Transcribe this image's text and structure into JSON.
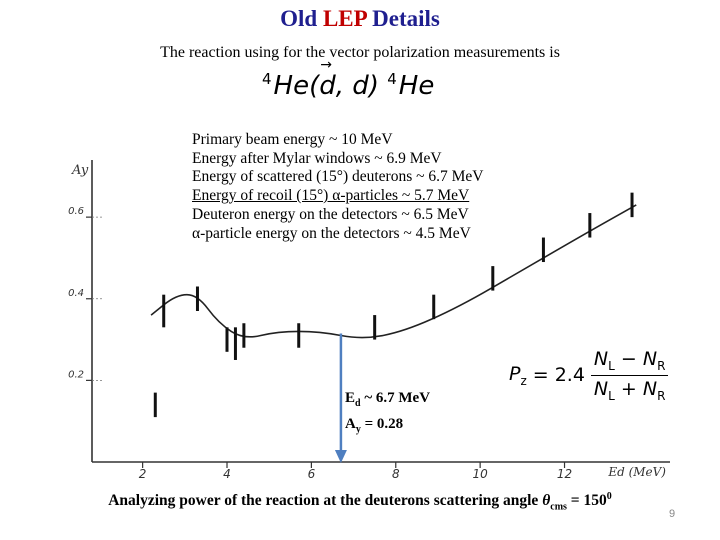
{
  "slide": {
    "title_pre": "Old ",
    "title_highlight": "LEP",
    "title_post": " Details",
    "subtitle": "The reaction using for the vector polarization measurements is",
    "page_number": "9"
  },
  "reaction": {
    "mass_number": "4",
    "nucleus": "He",
    "projectile": "d",
    "ejectile": "d"
  },
  "energies": [
    "Primary beam energy ~ 10 MeV",
    "Energy after Mylar windows ~ 6.9 MeV",
    "Energy of scattered (15°) deuterons ~ 6.7 MeV",
    "Energy of recoil (15°) α-particles ~ 5.7 MeV",
    "Deuteron energy on the detectors ~ 6.5 MeV",
    "α-particle energy on the detectors ~ 4.5 MeV"
  ],
  "formula": {
    "lhs": "P",
    "lhs_sub": "z",
    "coefficient": "2.4",
    "num_a": "N",
    "num_a_sub": "L",
    "num_b": "N",
    "num_b_sub": "R",
    "minus": "−",
    "plus": "+"
  },
  "annotation": {
    "ed_pre": "E",
    "ed_sub": "d",
    "ed_post": " ~ 6.7 MeV",
    "ay_pre": "A",
    "ay_sub": "y",
    "ay_post": " = 0.28"
  },
  "caption": {
    "text": "Analyzing power of the reaction at the deuterons scattering angle ",
    "theta": "θ",
    "theta_sub": "cms",
    "value": " = 150",
    "deg": "0"
  },
  "colors": {
    "title": "#1f1f8f",
    "highlight": "#c00000",
    "marker_arrow": "#4f7fc0"
  },
  "chart_data": {
    "type": "scatter",
    "ylabel": "Ay",
    "xlabel": "Ed (MeV)",
    "x_ticks": [
      "2",
      "4",
      "6",
      "8",
      "10",
      "12"
    ],
    "y_ticks": [
      "0.2",
      "0.4",
      "0.6"
    ],
    "xlim": [
      0.8,
      14.5
    ],
    "ylim": [
      0.0,
      0.74
    ],
    "marker_energy": 6.7,
    "points": [
      {
        "x": 2.3,
        "y": 0.14,
        "err": 0.03
      },
      {
        "x": 2.5,
        "y": 0.37,
        "err": 0.04
      },
      {
        "x": 3.3,
        "y": 0.4,
        "err": 0.03
      },
      {
        "x": 4.0,
        "y": 0.3,
        "err": 0.03
      },
      {
        "x": 4.2,
        "y": 0.29,
        "err": 0.04
      },
      {
        "x": 4.4,
        "y": 0.31,
        "err": 0.03
      },
      {
        "x": 5.7,
        "y": 0.31,
        "err": 0.03
      },
      {
        "x": 7.5,
        "y": 0.33,
        "err": 0.03
      },
      {
        "x": 8.9,
        "y": 0.38,
        "err": 0.03
      },
      {
        "x": 10.3,
        "y": 0.45,
        "err": 0.03
      },
      {
        "x": 11.5,
        "y": 0.52,
        "err": 0.03
      },
      {
        "x": 12.6,
        "y": 0.58,
        "err": 0.03
      },
      {
        "x": 13.6,
        "y": 0.63,
        "err": 0.03
      }
    ],
    "curve": [
      {
        "x": 2.2,
        "y": 0.36
      },
      {
        "x": 2.8,
        "y": 0.41
      },
      {
        "x": 3.3,
        "y": 0.41
      },
      {
        "x": 3.8,
        "y": 0.34
      },
      {
        "x": 4.4,
        "y": 0.3
      },
      {
        "x": 5.2,
        "y": 0.32
      },
      {
        "x": 6.2,
        "y": 0.32
      },
      {
        "x": 7.2,
        "y": 0.3
      },
      {
        "x": 8.2,
        "y": 0.32
      },
      {
        "x": 9.5,
        "y": 0.38
      },
      {
        "x": 11.0,
        "y": 0.47
      },
      {
        "x": 12.5,
        "y": 0.56
      },
      {
        "x": 13.7,
        "y": 0.63
      }
    ]
  }
}
